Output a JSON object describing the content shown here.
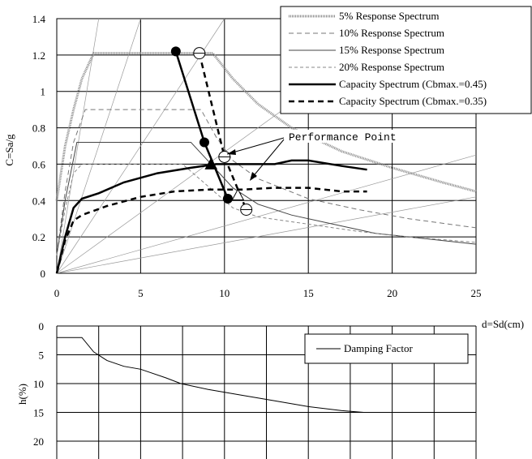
{
  "chart_data": [
    {
      "type": "line",
      "xlabel": "d=Sd(cm)",
      "ylabel": "C=Sa/g",
      "xlim": [
        0,
        25
      ],
      "ylim": [
        0,
        1.4
      ],
      "xticks": [
        "0",
        "5",
        "10",
        "15",
        "20",
        "25"
      ],
      "yticks": [
        "0",
        "0.2",
        "0.4",
        "0.6",
        "0.8",
        "1",
        "1.2",
        "1.4"
      ],
      "grid": true,
      "legend_position": "top-right",
      "annotation": "Performance Point",
      "series": [
        {
          "name": "5% Response Spectrum",
          "style": "double-gray",
          "points": [
            [
              0,
              0.4
            ],
            [
              0.5,
              0.7
            ],
            [
              1,
              0.9
            ],
            [
              1.5,
              1.07
            ],
            [
              2.2,
              1.21
            ],
            [
              5,
              1.21
            ],
            [
              9.3,
              1.21
            ],
            [
              10.5,
              1.07
            ],
            [
              12,
              0.93
            ],
            [
              14,
              0.8
            ],
            [
              17,
              0.67
            ],
            [
              20,
              0.58
            ],
            [
              23,
              0.5
            ],
            [
              25,
              0.45
            ]
          ]
        },
        {
          "name": "10% Response Spectrum",
          "style": "dash-gray",
          "points": [
            [
              0,
              0.1
            ],
            [
              0.5,
              0.45
            ],
            [
              1,
              0.72
            ],
            [
              1.7,
              0.9
            ],
            [
              8.6,
              0.9
            ],
            [
              9.5,
              0.75
            ],
            [
              10.5,
              0.62
            ],
            [
              12,
              0.52
            ],
            [
              15,
              0.41
            ],
            [
              18,
              0.35
            ],
            [
              21,
              0.3
            ],
            [
              25,
              0.25
            ]
          ]
        },
        {
          "name": "15% Response Spectrum",
          "style": "solid-gray",
          "points": [
            [
              0,
              0.1
            ],
            [
              0.5,
              0.4
            ],
            [
              1.2,
              0.72
            ],
            [
              2.8,
              0.72
            ],
            [
              3.3,
              0.72
            ],
            [
              8,
              0.72
            ],
            [
              9.2,
              0.6
            ],
            [
              10.5,
              0.47
            ],
            [
              12,
              0.38
            ],
            [
              14,
              0.32
            ],
            [
              16,
              0.28
            ],
            [
              19,
              0.22
            ],
            [
              22,
              0.19
            ],
            [
              25,
              0.16
            ]
          ]
        },
        {
          "name": "20% Response Spectrum",
          "style": "fine-dash-gray",
          "points": [
            [
              0,
              0.1
            ],
            [
              0.5,
              0.35
            ],
            [
              1,
              0.55
            ],
            [
              1.5,
              0.6
            ],
            [
              7.5,
              0.6
            ],
            [
              9,
              0.48
            ],
            [
              10.5,
              0.36
            ],
            [
              12,
              0.31
            ],
            [
              15,
              0.27
            ],
            [
              18,
              0.23
            ],
            [
              21,
              0.2
            ],
            [
              25,
              0.17
            ]
          ]
        },
        {
          "name": "Capacity Spectrum (Cbmax.=0.45)",
          "style": "thick-solid",
          "points": [
            [
              0,
              0
            ],
            [
              0.5,
              0.2
            ],
            [
              1,
              0.36
            ],
            [
              1.5,
              0.41
            ],
            [
              2.5,
              0.44
            ],
            [
              4,
              0.5
            ],
            [
              6,
              0.55
            ],
            [
              8,
              0.58
            ],
            [
              9.5,
              0.6
            ],
            [
              11,
              0.6
            ],
            [
              13,
              0.6
            ],
            [
              14,
              0.62
            ],
            [
              15,
              0.62
            ],
            [
              17,
              0.59
            ],
            [
              18.5,
              0.57
            ]
          ]
        },
        {
          "name": "Capacity Spectrum (Cbmax.=0.35)",
          "style": "thick-dash",
          "points": [
            [
              0,
              0
            ],
            [
              0.5,
              0.18
            ],
            [
              1,
              0.29
            ],
            [
              1.5,
              0.32
            ],
            [
              3,
              0.37
            ],
            [
              5,
              0.42
            ],
            [
              7,
              0.45
            ],
            [
              9,
              0.46
            ],
            [
              11,
              0.46
            ],
            [
              13,
              0.47
            ],
            [
              15,
              0.47
            ],
            [
              17,
              0.45
            ],
            [
              18.5,
              0.45
            ]
          ]
        },
        {
          "name": "",
          "style": "thick-solid-marker",
          "points": [
            [
              7.1,
              1.22
            ],
            [
              8.8,
              0.72
            ],
            [
              10.2,
              0.41
            ]
          ]
        },
        {
          "name": "",
          "style": "thick-dash-marker",
          "points": [
            [
              8.5,
              1.21
            ],
            [
              10,
              0.64
            ],
            [
              11.3,
              0.35
            ]
          ]
        }
      ],
      "performance_points": [
        {
          "x": 9.2,
          "y": 0.6,
          "marker": "filled-triangle"
        },
        {
          "x": 10.8,
          "y": 0.43,
          "marker": "open-triangle"
        }
      ]
    },
    {
      "type": "line",
      "xlabel": "",
      "ylabel": "h(%)",
      "xlim": [
        0,
        25
      ],
      "ylim": [
        20,
        0
      ],
      "yticks": [
        "0",
        "5",
        "10",
        "15",
        "20"
      ],
      "grid": true,
      "legend_position": "top-right",
      "series": [
        {
          "name": "Damping Factor",
          "points": [
            [
              0,
              2
            ],
            [
              1.5,
              2
            ],
            [
              2.2,
              4.5
            ],
            [
              3,
              6
            ],
            [
              4,
              7
            ],
            [
              5,
              7.5
            ],
            [
              5.5,
              8
            ],
            [
              6.5,
              9
            ],
            [
              7.4,
              10
            ],
            [
              9,
              11
            ],
            [
              11,
              12
            ],
            [
              13,
              13
            ],
            [
              15,
              14
            ],
            [
              17,
              14.7
            ],
            [
              18.3,
              15
            ]
          ]
        }
      ]
    }
  ]
}
